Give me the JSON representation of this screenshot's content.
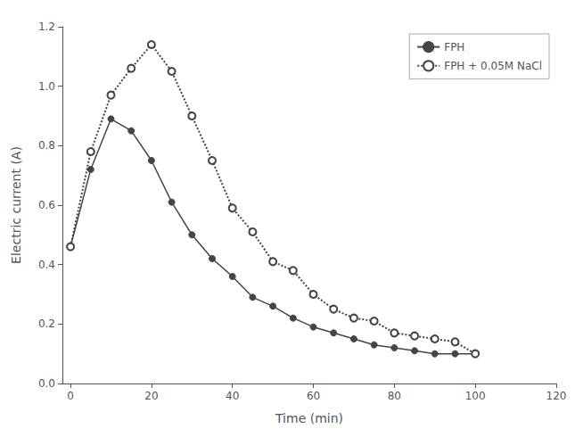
{
  "chart_data": {
    "type": "line",
    "xlabel": "Time (min)",
    "ylabel": "Electric current (A)",
    "xlim": [
      -2,
      120
    ],
    "ylim": [
      0.0,
      1.2
    ],
    "xticks": [
      0,
      20,
      40,
      60,
      80,
      100,
      120
    ],
    "yticks": [
      {
        "value": 0,
        "label": "0.0"
      },
      0.2,
      0.4,
      0.6,
      0.8,
      {
        "value": 1,
        "label": "1.0"
      },
      1.2
    ],
    "grid": false,
    "legend": "upper right",
    "series": [
      {
        "name": "FPH",
        "color": "#444444",
        "line_style": "solid",
        "marker": "circle",
        "x": [
          0,
          5,
          10,
          15,
          20,
          25,
          30,
          35,
          40,
          45,
          50,
          55,
          60,
          65,
          70,
          75,
          80,
          85,
          90,
          95,
          100
        ],
        "values": [
          0.46,
          0.72,
          0.89,
          0.85,
          0.75,
          0.61,
          0.5,
          0.42,
          0.36,
          0.29,
          0.26,
          0.22,
          0.19,
          0.17,
          0.15,
          0.13,
          0.12,
          0.11,
          0.1,
          0.1,
          0.1
        ]
      },
      {
        "name": "FPH + 0.05M NaCl",
        "color": "#444444",
        "line_style": "dotted",
        "marker": "open_circle",
        "x": [
          0,
          5,
          10,
          15,
          20,
          25,
          30,
          35,
          40,
          45,
          50,
          55,
          60,
          65,
          70,
          75,
          80,
          85,
          90,
          95,
          100
        ],
        "values": [
          0.46,
          0.78,
          0.97,
          1.06,
          1.14,
          1.05,
          0.9,
          0.75,
          0.59,
          0.51,
          0.41,
          0.38,
          0.3,
          0.25,
          0.22,
          0.21,
          0.17,
          0.16,
          0.15,
          0.14,
          0.1
        ]
      }
    ]
  }
}
